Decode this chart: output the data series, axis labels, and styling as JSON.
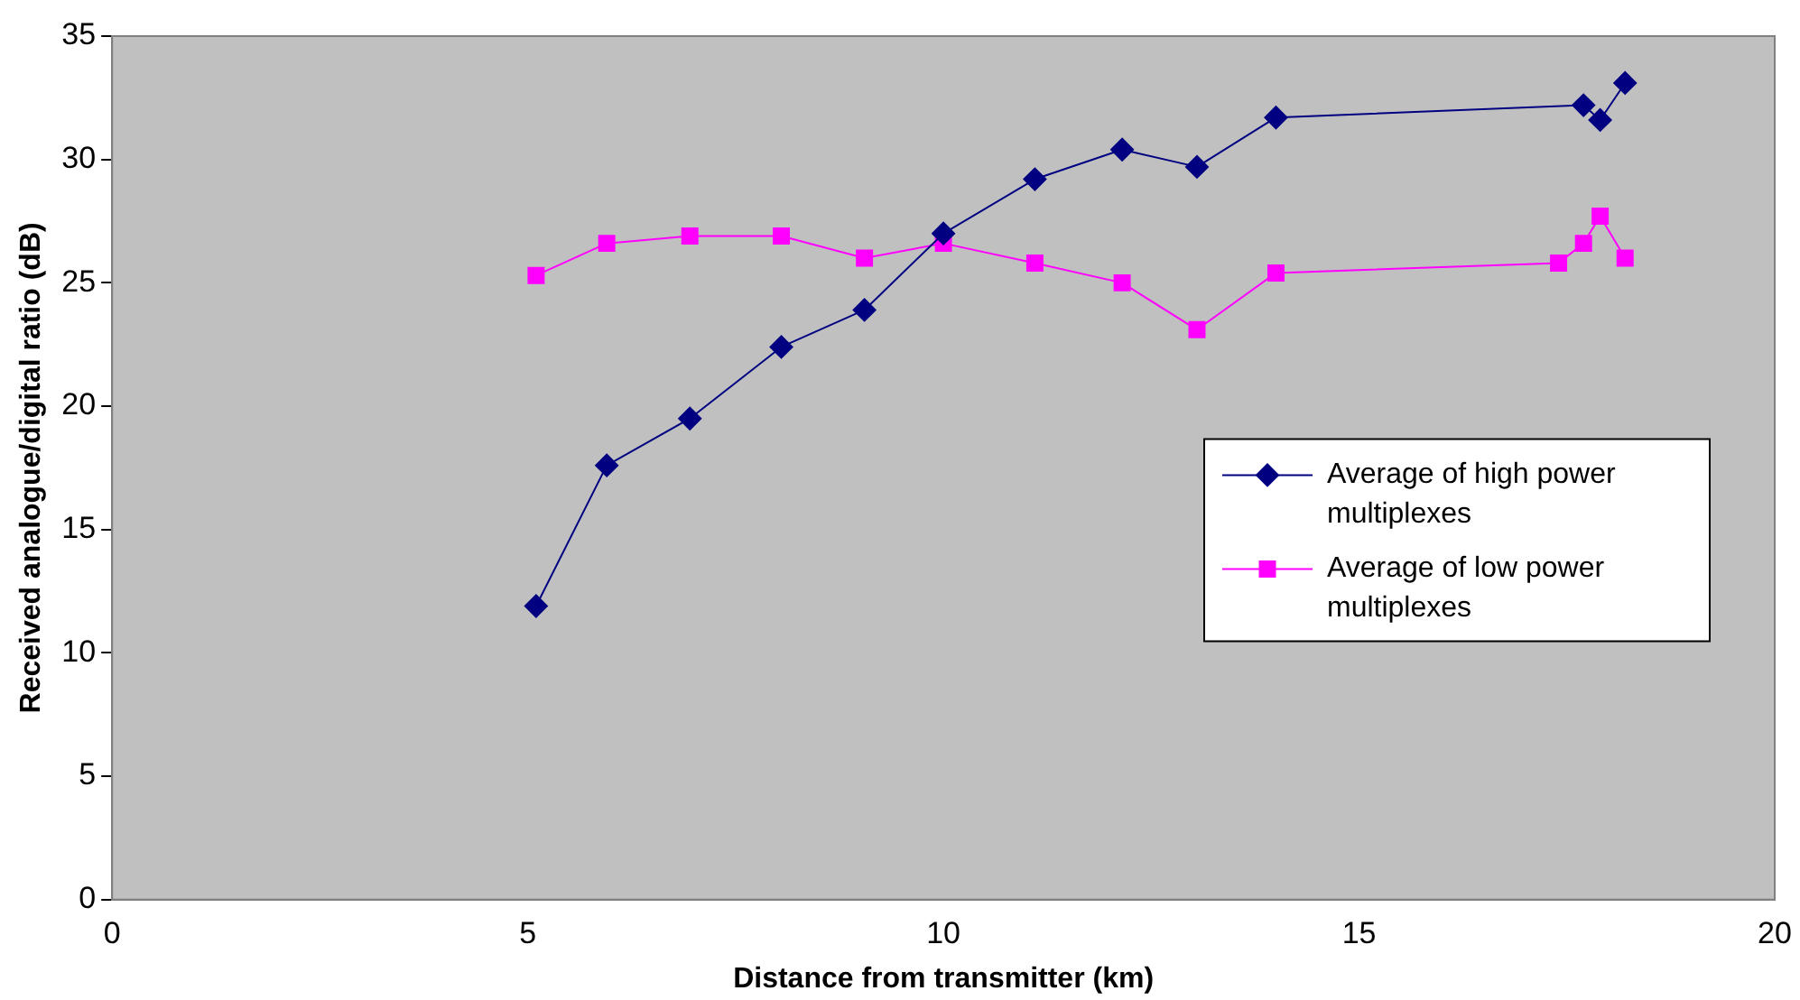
{
  "chart_data": {
    "type": "line",
    "xlabel": "Distance from transmitter (km)",
    "ylabel": "Received analogue/digital ratio (dB)",
    "xlim": [
      0,
      20
    ],
    "xticks": [
      0,
      5,
      10,
      15,
      20
    ],
    "ylim": [
      0,
      35
    ],
    "yticks": [
      0,
      5,
      10,
      15,
      20,
      25,
      30,
      35
    ],
    "grid": false,
    "legend": "right",
    "line_style": "solid",
    "series": [
      {
        "name": "Average of high power multiplexes",
        "color": "#000080",
        "marker": "diamond",
        "x": [
          5.1,
          5.95,
          6.95,
          8.05,
          9.05,
          10.0,
          11.1,
          12.15,
          13.05,
          14.0,
          17.7,
          17.9,
          18.2
        ],
        "values": [
          11.9,
          17.6,
          19.5,
          22.4,
          23.9,
          27.0,
          29.2,
          30.4,
          29.7,
          31.7,
          32.2,
          31.6,
          33.1
        ]
      },
      {
        "name": "Average of low power multiplexes",
        "color": "#ff00ff",
        "marker": "square",
        "x": [
          5.1,
          5.95,
          6.95,
          8.05,
          9.05,
          10.0,
          11.1,
          12.15,
          13.05,
          14.0,
          17.4,
          17.7,
          17.9,
          18.2
        ],
        "values": [
          25.3,
          26.6,
          26.9,
          26.9,
          26.0,
          26.6,
          25.8,
          25.0,
          23.1,
          25.4,
          25.8,
          26.6,
          27.7,
          26.0
        ]
      }
    ]
  }
}
